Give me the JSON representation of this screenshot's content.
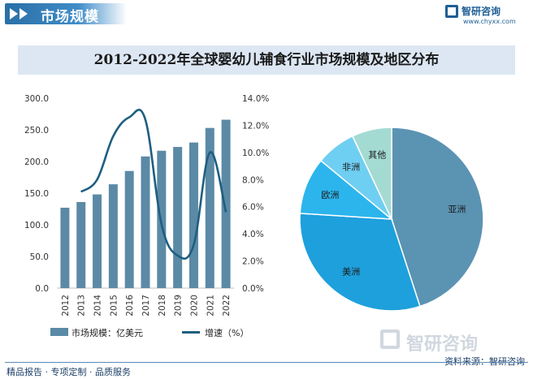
{
  "header": {
    "title": "市场规模",
    "logo_name": "智研咨询",
    "logo_url": "www.chyxx.com",
    "bottom_logo_name": "智研咨询"
  },
  "footer": {
    "left": "精品报告 · 专项定制 · 品质服务",
    "source": "资料来源：智研咨询"
  },
  "colors": {
    "bar": "#5b8aa6",
    "line": "#1f5e80",
    "title_band": "#dce7f3",
    "asia": "#5b93b3",
    "america": "#1ea0dc",
    "europe": "#2cb5ec",
    "africa": "#6fcff2",
    "other": "#a3dbd3"
  },
  "chart_data": [
    {
      "type": "bar",
      "title": "2012-2022年全球婴幼儿辅食行业市场规模及地区分布",
      "categories": [
        "2012",
        "2013",
        "2014",
        "2015",
        "2016",
        "2017",
        "2018",
        "2019",
        "2020",
        "2021",
        "2022"
      ],
      "series": [
        {
          "name": "市场规模：亿美元",
          "type": "bar",
          "axis": "left",
          "values": [
            127,
            136,
            148,
            164,
            185,
            208,
            217,
            223,
            230,
            253,
            266
          ]
        },
        {
          "name": "增速（%）",
          "type": "line",
          "axis": "right",
          "values": [
            null,
            7.1,
            8.0,
            11.2,
            12.6,
            12.4,
            4.7,
            2.4,
            3.2,
            10.0,
            5.6
          ]
        }
      ],
      "ylim": [
        0,
        300
      ],
      "yticks": [
        "0.0",
        "50.0",
        "100.0",
        "150.0",
        "200.0",
        "250.0",
        "300.0"
      ],
      "y2lim": [
        0,
        14
      ],
      "y2ticks": [
        "0.0%",
        "2.0%",
        "4.0%",
        "6.0%",
        "8.0%",
        "10.0%",
        "12.0%",
        "14.0%"
      ],
      "legend": "bottom",
      "grid": false
    },
    {
      "type": "pie",
      "labels": [
        "亚洲",
        "美洲",
        "欧洲",
        "非洲",
        "其他"
      ],
      "values": [
        45,
        31,
        10,
        7,
        7
      ]
    }
  ]
}
